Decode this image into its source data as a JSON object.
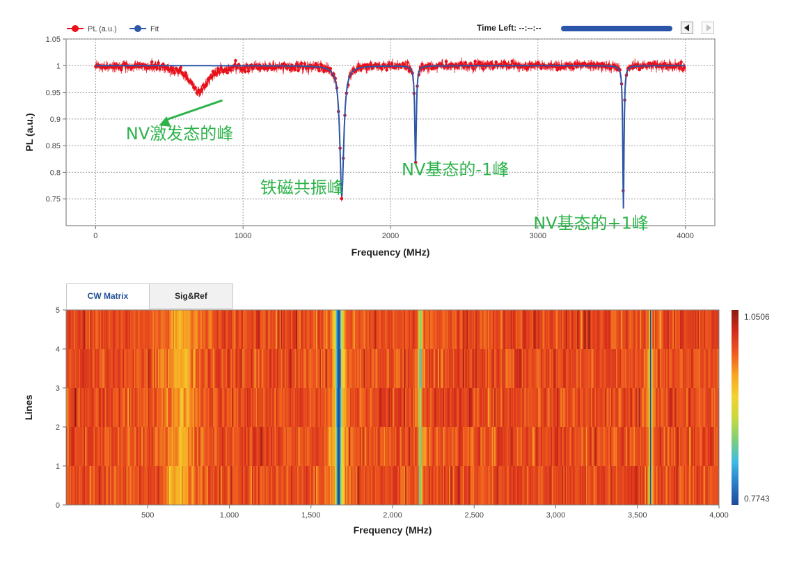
{
  "controls": {
    "time_left_label": "Time Left:",
    "time_left_value": "--:--:--",
    "progress": 1.0,
    "prev_icon": "triangle-left-icon",
    "next_icon": "triangle-right-icon"
  },
  "tabs": [
    {
      "label": "CW Matrix",
      "active": true
    },
    {
      "label": "Sig&Ref",
      "active": false
    }
  ],
  "colors": {
    "pl_series": "#e8101a",
    "fit_series": "#2c56a6",
    "annotation": "#2db34a",
    "colormap": [
      "#1f4a9a",
      "#2a7cc8",
      "#3fbbe4",
      "#7cd07a",
      "#c8d840",
      "#f2d22e",
      "#f6a623",
      "#ee5a1f",
      "#d42b1b",
      "#8a1a12"
    ]
  },
  "chart_data": [
    {
      "type": "line",
      "legend": [
        "PL (a.u.)",
        "Fit"
      ],
      "legend_position": "top-left",
      "xlabel": "Frequency (MHz)",
      "ylabel": "PL (a.u.)",
      "xlim": [
        -200,
        4200
      ],
      "ylim": [
        0.7,
        1.05
      ],
      "x_ticks": [
        "0",
        "1000",
        "2000",
        "3000",
        "4000"
      ],
      "y_ticks": [
        "0.75",
        "0.8",
        "0.85",
        "0.9",
        "0.95",
        "1",
        "1.05"
      ],
      "grid": true,
      "baseline": 1.0,
      "x_range_data": [
        0,
        4000
      ],
      "dips": [
        {
          "center": 700,
          "depth": 0.05,
          "width": 140,
          "fit_captures": false
        },
        {
          "center": 1670,
          "depth": 0.245,
          "width": 32,
          "fit_captures": true
        },
        {
          "center": 2170,
          "depth": 0.185,
          "width": 12,
          "fit_captures": true
        },
        {
          "center": 3580,
          "depth": 0.268,
          "width": 10,
          "fit_captures": true
        }
      ],
      "annotations": [
        {
          "text": "NV激发态的峰",
          "x": 570,
          "y": 0.862
        },
        {
          "text": "铁磁共振峰",
          "x": 1400,
          "y": 0.761
        },
        {
          "text": "NV基态的-1峰",
          "x": 2440,
          "y": 0.795
        },
        {
          "text": "NV基态的+1峰",
          "x": 3360,
          "y": 0.694
        }
      ],
      "arrow": {
        "from_x": 860,
        "from_y": 0.935,
        "to_x": 430,
        "to_y": 0.888
      }
    },
    {
      "type": "heatmap",
      "xlabel": "Frequency (MHz)",
      "ylabel": "Lines",
      "xlim": [
        0,
        4000
      ],
      "ylim": [
        0,
        5
      ],
      "x_ticks": [
        "500",
        "1,000",
        "1,500",
        "2,000",
        "2,500",
        "3,000",
        "3,500",
        "4,000"
      ],
      "y_ticks": [
        "0",
        "1",
        "2",
        "3",
        "4",
        "5"
      ],
      "rows": 5,
      "colorbar": {
        "max": "1.0506",
        "min": "0.7743"
      }
    }
  ]
}
